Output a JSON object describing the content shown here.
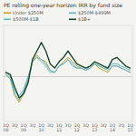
{
  "chart_data": {
    "type": "line",
    "title": "PE rolling one-year horizon IRR by fund size",
    "categories": [
      "1Q\n08",
      null,
      "3Q",
      null,
      "1Q\n09",
      null,
      "3Q",
      null,
      "1Q\n10",
      null,
      "3Q",
      null,
      "1Q\n11",
      null,
      "3Q",
      null,
      "1Q\n12",
      null,
      "3Q",
      null,
      "1Q\n13",
      null,
      "3Q",
      null,
      "1Q\n14",
      null,
      "3Q",
      null,
      "1Q\n15"
    ],
    "series": [
      {
        "name": "Under $250M",
        "color": "#c8a020",
        "values": [
          2,
          -2,
          -18,
          -24,
          -16,
          -4,
          14,
          20,
          16,
          14,
          6,
          4,
          10,
          14,
          18,
          14,
          10,
          8,
          6,
          8,
          12,
          8,
          6,
          4,
          10,
          10,
          8,
          6,
          4
        ]
      },
      {
        "name": "$250M-$499M",
        "color": "#6aaed6",
        "values": [
          2,
          -2,
          -16,
          -22,
          -14,
          -2,
          14,
          18,
          16,
          12,
          6,
          4,
          10,
          12,
          16,
          12,
          8,
          8,
          6,
          8,
          12,
          10,
          8,
          6,
          10,
          10,
          8,
          6,
          4
        ]
      },
      {
        "name": "$500M-$1B",
        "color": "#5bbcb8",
        "values": [
          4,
          0,
          -14,
          -18,
          -12,
          0,
          14,
          18,
          14,
          10,
          4,
          4,
          10,
          12,
          16,
          10,
          8,
          8,
          6,
          10,
          12,
          10,
          8,
          8,
          12,
          12,
          10,
          8,
          6
        ]
      },
      {
        "name": "$1B+",
        "color": "#1a4a2e",
        "values": [
          4,
          2,
          -10,
          -20,
          -16,
          -6,
          16,
          24,
          32,
          24,
          12,
          8,
          14,
          18,
          24,
          18,
          12,
          10,
          8,
          10,
          14,
          12,
          10,
          8,
          16,
          18,
          14,
          10,
          8
        ]
      }
    ],
    "ylim": [
      -42,
      48
    ],
    "yticks": [
      0
    ],
    "tick_labels": "x",
    "grid": false,
    "legend": "top"
  }
}
